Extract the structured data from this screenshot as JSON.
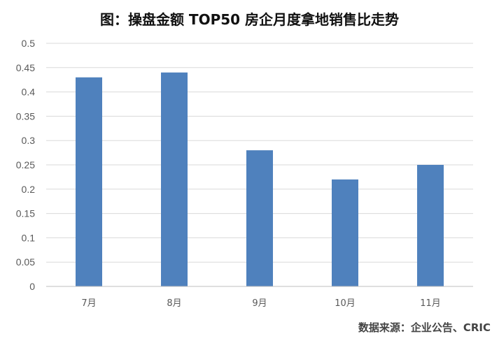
{
  "chart_data": {
    "type": "bar",
    "title": "图：操盘金额 TOP50 房企月度拿地销售比走势",
    "categories": [
      "7月",
      "8月",
      "9月",
      "10月",
      "11月"
    ],
    "values": [
      0.43,
      0.44,
      0.28,
      0.22,
      0.25
    ],
    "ylim": [
      0,
      0.5
    ],
    "yticks": [
      "0",
      "0.05",
      "0.1",
      "0.15",
      "0.2",
      "0.25",
      "0.3",
      "0.35",
      "0.4",
      "0.45",
      "0.5"
    ],
    "xlabel": "",
    "ylabel": "",
    "grid": true,
    "legend": "none",
    "bar_color": "#4f81bd"
  },
  "source": "数据来源：企业公告、CRIC"
}
